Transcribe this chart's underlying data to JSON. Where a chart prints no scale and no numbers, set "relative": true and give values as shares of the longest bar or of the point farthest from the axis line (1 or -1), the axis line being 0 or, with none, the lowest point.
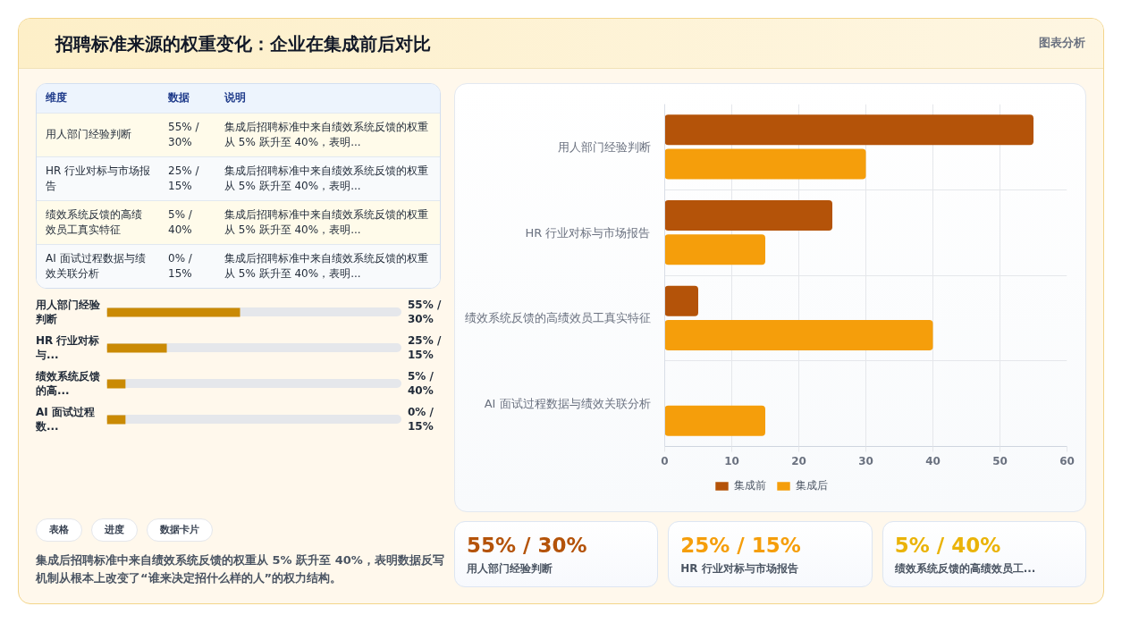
{
  "chart_data": [
    {
      "type": "other",
      "title": "招聘标准来源的权重变化：企业在集成前后对比",
      "annotations": [
        "图表分析"
      ],
      "categories": [
        "维度",
        "数据",
        "说明"
      ],
      "cell_labels": [
        [
          "用人部门经验判断",
          "55% / 30%",
          "集成后招聘标准中来自绩效系统反馈的权重从 5% 跃升至 40%，表明..."
        ],
        [
          "HR 行业对标与市场报告",
          "25% / 15%",
          "集成后招聘标准中来自绩效系统反馈的权重从 5% 跃升至 40%，表明..."
        ],
        [
          "绩效系统反馈的高绩效员工真实特征",
          "5% / 40%",
          "集成后招聘标准中来自绩效系统反馈的权重从 5% 跃升至 40%，表明..."
        ],
        [
          "AI 面试过程数据与绩效关联分析",
          "0% / 15%",
          "集成后招聘标准中来自绩效系统反馈的权重从 5% 跃升至 40%，表明..."
        ]
      ]
    },
    {
      "type": "bar",
      "orientation": "horizontal",
      "categories": [
        "用人部门经验判断",
        "HR 行业对标与市场报告",
        "绩效系统反馈的高绩效员工真实特征",
        "AI 面试过程数据与绩效关联分析"
      ],
      "series": [
        {
          "name": "集成前",
          "color": "#b45309",
          "values": [
            55,
            25,
            5,
            0
          ]
        },
        {
          "name": "集成后",
          "color": "#f59e0b",
          "values": [
            30,
            15,
            40,
            15
          ]
        }
      ],
      "xlim": [
        0,
        60
      ],
      "xticks": [
        0,
        10,
        20,
        30,
        40,
        50,
        60
      ],
      "grid": true,
      "legend": "bottom"
    },
    {
      "type": "bar",
      "orientation": "horizontal",
      "relative": true,
      "categories": [
        "用人部门经验判断",
        "HR 行业对标与...",
        "绩效系统反馈的高...",
        "AI 面试过程数..."
      ],
      "values": [
        1,
        0.45,
        0.14,
        0.14
      ],
      "annotations": [
        "55% / 30%",
        "25% / 15%",
        "5% / 40%",
        "0% / 15%"
      ],
      "color": "#ca8a04"
    },
    {
      "type": "other",
      "annotations": [
        "55% / 30%",
        "用人部门经验判断",
        "25% / 15%",
        "HR 行业对标与市场报告",
        "5% / 40%",
        "绩效系统反馈的高绩效员工..."
      ],
      "colors": [
        "#b45309",
        "#f59e0b",
        "#eab308"
      ]
    },
    {
      "type": "other",
      "categories": [
        "表格",
        "进度",
        "数据卡片"
      ],
      "annotations": [
        "集成后招聘标准中来自绩效系统反馈的权重从 5% 跃升至 40%，表明数据反写机制从根本上改变了“谁来决定招什么样的人”的权力结构。"
      ]
    }
  ]
}
